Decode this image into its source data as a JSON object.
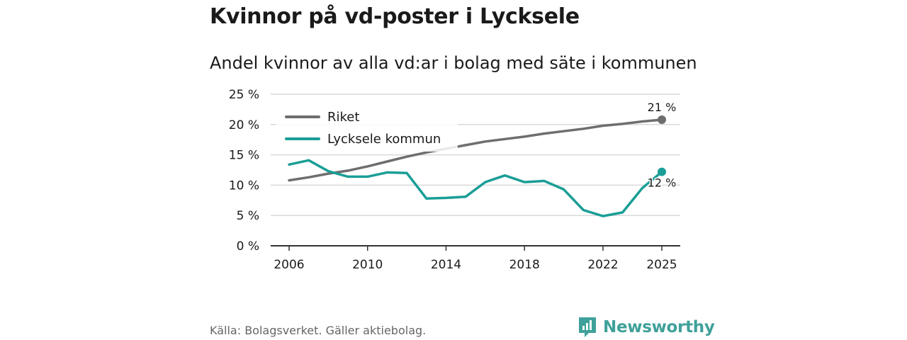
{
  "header": {
    "title": "Kvinnor på vd-poster i Lycksele",
    "subtitle": "Andel kvinnor av alla vd:ar i bolag med säte i kommunen"
  },
  "footer": {
    "source": "Källa: Bolagsverket. Gäller aktiebolag.",
    "brand": "Newsworthy",
    "brand_icon": "bar-chart-logo-icon"
  },
  "colors": {
    "riket": "#6e6d6f",
    "lycksele": "#1a9e96",
    "grid": "#d9d9d9",
    "brand": "#3fa19a"
  },
  "chart_data": {
    "type": "line",
    "title": "Kvinnor på vd-poster i Lycksele",
    "subtitle": "Andel kvinnor av alla vd:ar i bolag med säte i kommunen",
    "xlabel": "",
    "ylabel": "",
    "xlim": [
      2006,
      2025
    ],
    "ylim": [
      0,
      25
    ],
    "x_ticks": [
      2006,
      2010,
      2014,
      2018,
      2022,
      2025
    ],
    "y_ticks": [
      {
        "value": 0,
        "label": "0 %"
      },
      {
        "value": 5,
        "label": "5 %"
      },
      {
        "value": 10,
        "label": "10 %"
      },
      {
        "value": 15,
        "label": "15 %"
      },
      {
        "value": 20,
        "label": "20 %"
      },
      {
        "value": 25,
        "label": "25 %"
      }
    ],
    "grid": true,
    "legend_position": "top-left",
    "x": [
      2006,
      2007,
      2008,
      2009,
      2010,
      2011,
      2012,
      2013,
      2014,
      2015,
      2016,
      2017,
      2018,
      2019,
      2020,
      2021,
      2022,
      2023,
      2024,
      2025
    ],
    "series": [
      {
        "name": "Riket",
        "color": "#6e6d6f",
        "values": [
          10.8,
          11.3,
          11.9,
          12.4,
          13.1,
          13.9,
          14.7,
          15.4,
          16.0,
          16.6,
          17.2,
          17.6,
          18.0,
          18.5,
          18.9,
          19.3,
          19.8,
          20.1,
          20.5,
          20.8
        ],
        "end_label": "21 %"
      },
      {
        "name": "Lycksele kommun",
        "color": "#1a9e96",
        "values": [
          13.4,
          14.1,
          12.3,
          11.4,
          11.4,
          12.1,
          12.0,
          7.8,
          7.9,
          8.1,
          10.5,
          11.6,
          10.5,
          10.7,
          9.3,
          5.9,
          4.9,
          5.5,
          9.5,
          12.2
        ],
        "end_label": "12 %"
      }
    ]
  }
}
